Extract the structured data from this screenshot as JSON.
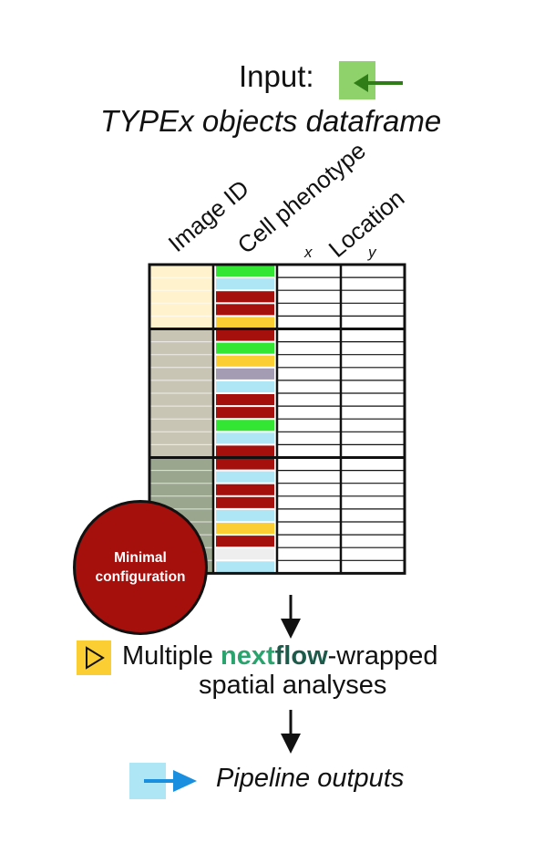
{
  "title": {
    "input_label": "Input:",
    "subtitle": "TYPEx objects dataframe"
  },
  "table": {
    "headers": {
      "image_id": "Image ID",
      "cell_phenotype": "Cell phenotype",
      "location": "Location",
      "x": "x",
      "y": "y"
    },
    "groups": [
      {
        "image_color": "#fff2cc",
        "phenotypes": [
          "#33e633",
          "#aee6f5",
          "#a50f0c",
          "#a50f0c",
          "#fbcf33"
        ]
      },
      {
        "image_color": "#c9c5b5",
        "phenotypes": [
          "#a50f0c",
          "#33e633",
          "#fbcf33",
          "#a49cb3",
          "#aee6f5",
          "#a50f0c",
          "#a50f0c",
          "#33e633",
          "#aee6f5",
          "#a50f0c"
        ]
      },
      {
        "image_color": "#9aa68e",
        "phenotypes": [
          "#a50f0c",
          "#aee6f5",
          "#a50f0c",
          "#a50f0c",
          "#aee6f5",
          "#fbcf33",
          "#a50f0c",
          "#eeeeee",
          "#aee6f5"
        ]
      }
    ]
  },
  "badge": {
    "line1": "Minimal",
    "line2": "configuration"
  },
  "step": {
    "prefix": "Multiple ",
    "nf_next": "next",
    "nf_flow": "flow",
    "suffix": "-wrapped",
    "line2": "spatial analyses",
    "icon": "play-icon",
    "icon_color": "#fbcf33"
  },
  "outputs": {
    "label": "Pipeline outputs",
    "icon": "output-arrow-icon",
    "icon_color": "#aee6f5",
    "arrow_color": "#1a8fe0"
  },
  "colors": {
    "input_box": "#8fd16a",
    "input_arrow": "#2e7d17",
    "text": "#111111"
  }
}
